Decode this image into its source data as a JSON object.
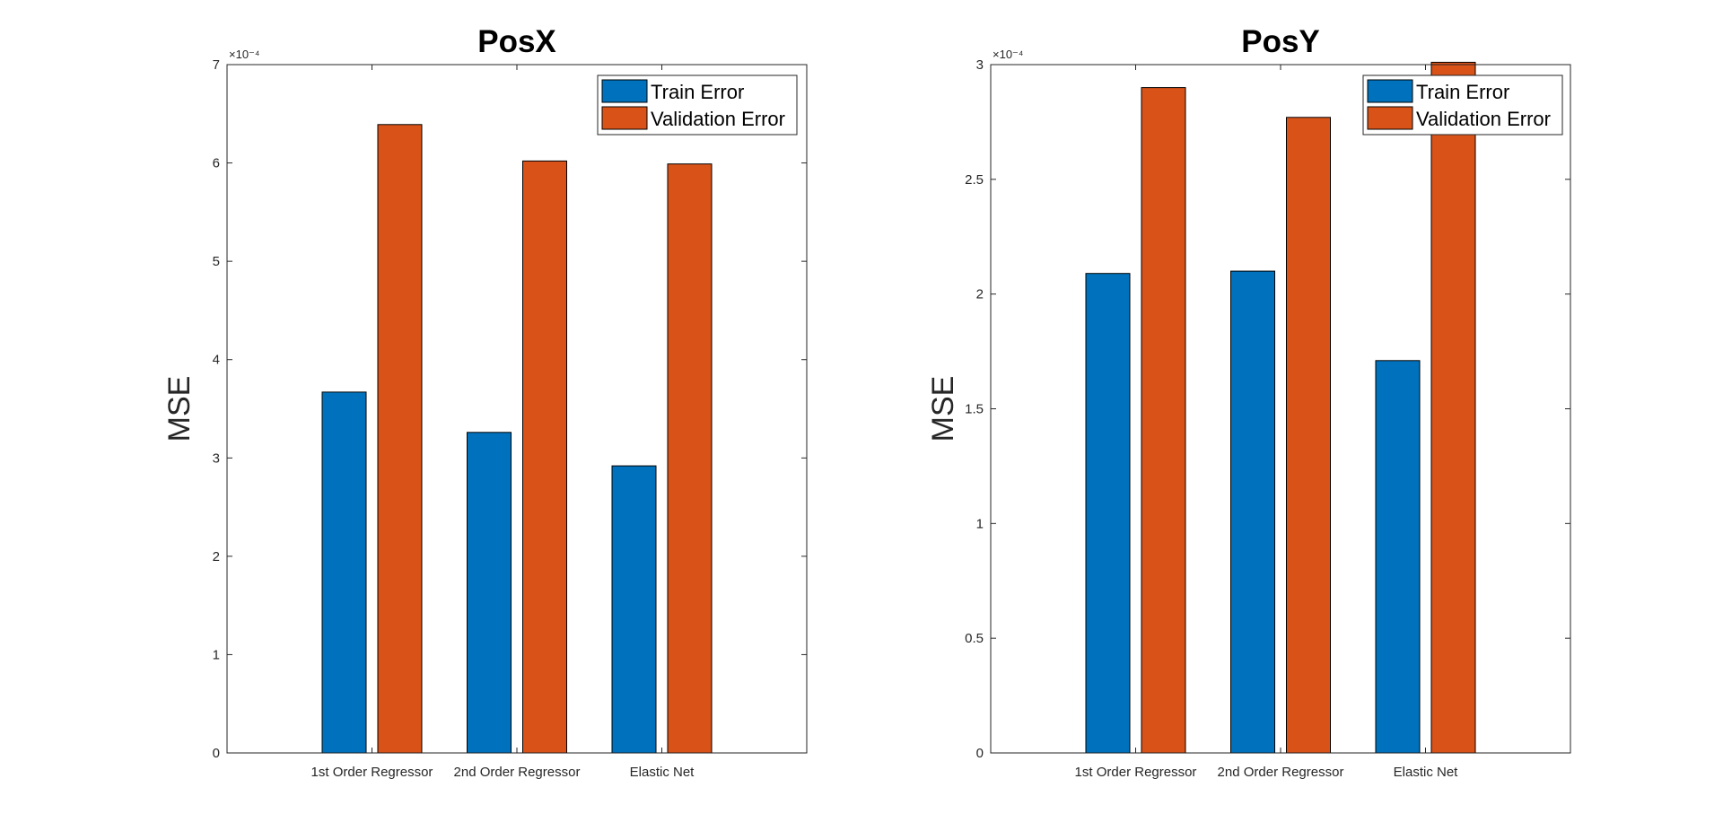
{
  "chart_data": [
    {
      "type": "bar",
      "title": "PosX",
      "xlabel": "",
      "ylabel": "MSE",
      "categories": [
        "1st Order Regressor",
        "2nd Order Regressor",
        "Elastic Net"
      ],
      "series": [
        {
          "name": "Train Error",
          "values": [
            0.000367,
            0.000326,
            0.000292
          ],
          "color": "#0072BD"
        },
        {
          "name": "Validation Error",
          "values": [
            0.000639,
            0.000602,
            0.000599
          ],
          "color": "#D95319"
        }
      ],
      "ylim": [
        0,
        0.0007
      ],
      "y_ticks": [
        0,
        0.0001,
        0.0002,
        0.0003,
        0.0004,
        0.0005,
        0.0006,
        0.0007
      ],
      "y_tick_labels": [
        "0",
        "1",
        "2",
        "3",
        "4",
        "5",
        "6",
        "7"
      ],
      "y_exponent_label": "×10⁻⁴",
      "grid": false,
      "legend_position": "top-right"
    },
    {
      "type": "bar",
      "title": "PosY",
      "xlabel": "",
      "ylabel": "MSE",
      "categories": [
        "1st Order Regressor",
        "2nd Order Regressor",
        "Elastic Net"
      ],
      "series": [
        {
          "name": "Train Error",
          "values": [
            0.000209,
            0.00021,
            0.000171
          ],
          "color": "#0072BD"
        },
        {
          "name": "Validation Error",
          "values": [
            0.00029,
            0.000277,
            0.000301
          ],
          "color": "#D95319"
        }
      ],
      "ylim": [
        0,
        0.0003
      ],
      "y_ticks": [
        0,
        5e-05,
        0.0001,
        0.00015,
        0.0002,
        0.00025,
        0.0003
      ],
      "y_tick_labels": [
        "0",
        "0.5",
        "1",
        "1.5",
        "2",
        "2.5",
        "3"
      ],
      "y_exponent_label": "×10⁻⁴",
      "grid": false,
      "legend_position": "top-right"
    }
  ]
}
